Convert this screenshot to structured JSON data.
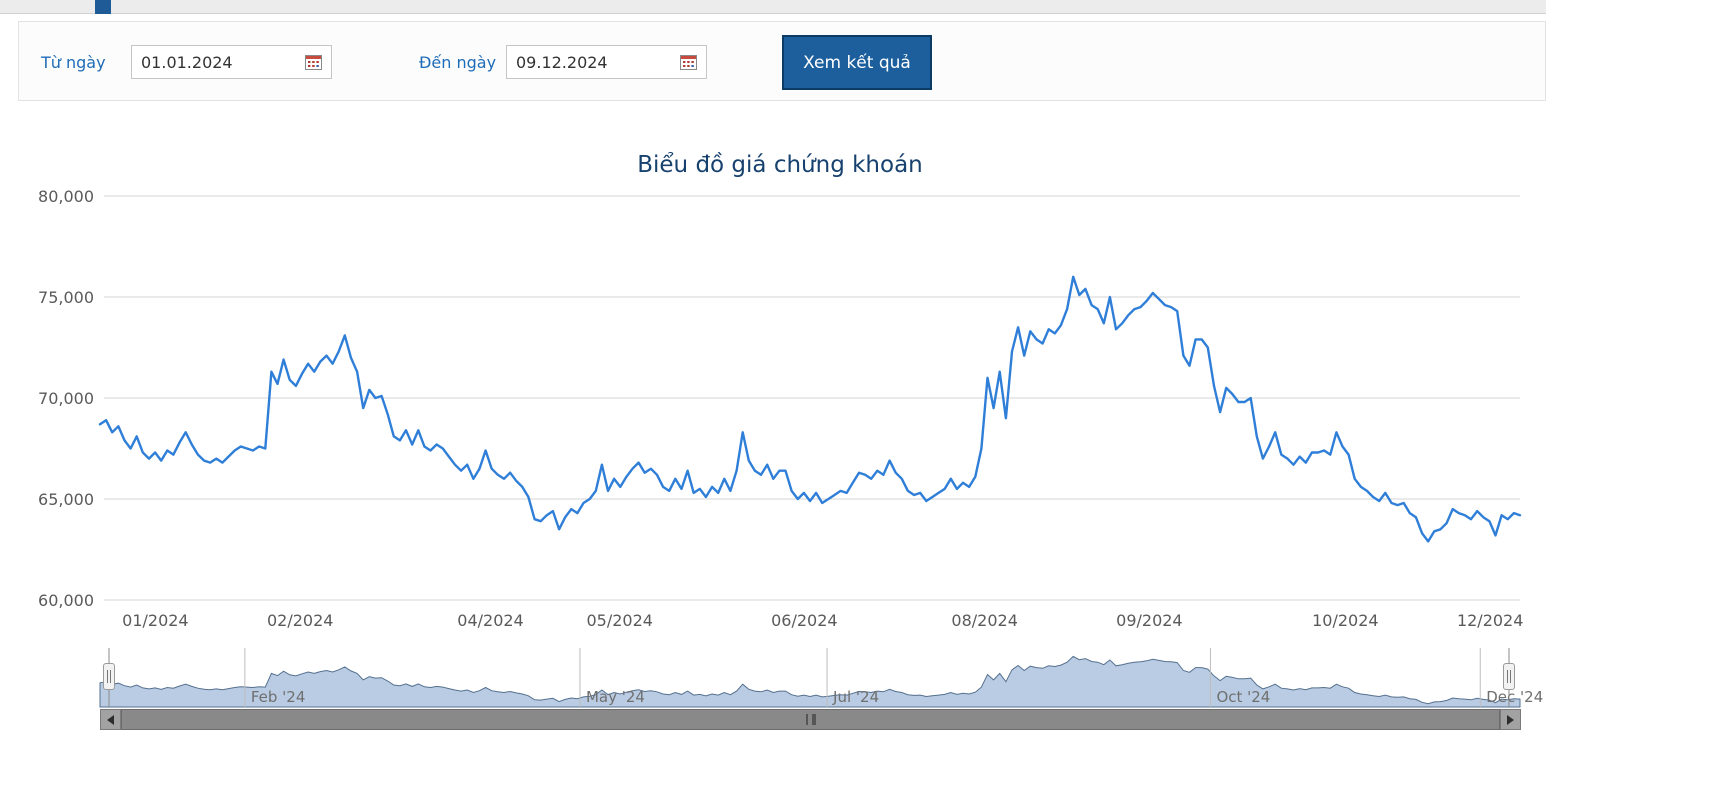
{
  "filter": {
    "from_label": "Từ ngày",
    "from_value": "01.01.2024",
    "to_label": "Đến ngày",
    "to_value": "09.12.2024",
    "submit_label": "Xem kết quả"
  },
  "chart_data": {
    "type": "line",
    "title": "Biểu đồ giá chứng khoán",
    "xlabel": "",
    "ylabel": "",
    "ylim": [
      60000,
      80000
    ],
    "yticks": [
      60000,
      65000,
      70000,
      75000,
      80000
    ],
    "xticks": [
      {
        "label": "01/2024",
        "pos": 0.039
      },
      {
        "label": "02/2024",
        "pos": 0.141
      },
      {
        "label": "04/2024",
        "pos": 0.275
      },
      {
        "label": "05/2024",
        "pos": 0.366
      },
      {
        "label": "06/2024",
        "pos": 0.496
      },
      {
        "label": "08/2024",
        "pos": 0.623
      },
      {
        "label": "09/2024",
        "pos": 0.739
      },
      {
        "label": "10/2024",
        "pos": 0.877
      },
      {
        "label": "12/2024",
        "pos": 0.979
      }
    ],
    "navigator_ticks": [
      {
        "label": "Feb '24",
        "pos": 0.102
      },
      {
        "label": "May '24",
        "pos": 0.338
      },
      {
        "label": "Jul '24",
        "pos": 0.512
      },
      {
        "label": "Oct '24",
        "pos": 0.782
      },
      {
        "label": "Dec '24",
        "pos": 0.972
      }
    ],
    "grid": true,
    "legend": "none",
    "values": [
      68700,
      68900,
      68300,
      68600,
      67900,
      67500,
      68100,
      67300,
      67000,
      67300,
      66900,
      67400,
      67200,
      67800,
      68300,
      67700,
      67200,
      66900,
      66800,
      67000,
      66800,
      67100,
      67400,
      67600,
      67500,
      67400,
      67600,
      67500,
      71300,
      70700,
      71900,
      70900,
      70600,
      71200,
      71700,
      71300,
      71800,
      72100,
      71700,
      72300,
      73100,
      72000,
      71300,
      69500,
      70400,
      70000,
      70100,
      69200,
      68100,
      67900,
      68400,
      67700,
      68400,
      67600,
      67400,
      67700,
      67500,
      67100,
      66700,
      66400,
      66700,
      66000,
      66500,
      67400,
      66500,
      66200,
      66000,
      66300,
      65900,
      65600,
      65100,
      64000,
      63900,
      64200,
      64400,
      63500,
      64100,
      64500,
      64300,
      64800,
      65000,
      65400,
      66700,
      65400,
      66000,
      65600,
      66100,
      66500,
      66800,
      66300,
      66500,
      66200,
      65600,
      65400,
      66000,
      65500,
      66400,
      65300,
      65500,
      65100,
      65600,
      65300,
      66000,
      65400,
      66400,
      68300,
      66900,
      66400,
      66200,
      66700,
      66000,
      66400,
      66400,
      65400,
      65000,
      65300,
      64900,
      65300,
      64800,
      65000,
      65200,
      65400,
      65300,
      65800,
      66300,
      66200,
      66000,
      66400,
      66200,
      66900,
      66300,
      66000,
      65400,
      65200,
      65300,
      64900,
      65100,
      65300,
      65500,
      66000,
      65500,
      65800,
      65600,
      66100,
      67500,
      71000,
      69500,
      71300,
      69000,
      72300,
      73500,
      72100,
      73300,
      72900,
      72700,
      73400,
      73200,
      73600,
      74400,
      76000,
      75100,
      75400,
      74600,
      74400,
      73700,
      75000,
      73400,
      73700,
      74100,
      74400,
      74500,
      74800,
      75200,
      74900,
      74600,
      74500,
      74300,
      72100,
      71600,
      72900,
      72900,
      72500,
      70600,
      69300,
      70500,
      70200,
      69800,
      69800,
      70000,
      68100,
      67000,
      67600,
      68300,
      67200,
      67000,
      66700,
      67100,
      66800,
      67300,
      67300,
      67400,
      67200,
      68300,
      67600,
      67200,
      66000,
      65600,
      65400,
      65100,
      64900,
      65300,
      64800,
      64700,
      64800,
      64300,
      64100,
      63300,
      62900,
      63400,
      63500,
      63800,
      64500,
      64300,
      64200,
      64000,
      64400,
      64100,
      63900,
      63200,
      64200,
      64000,
      64300,
      64200
    ]
  },
  "colors": {
    "line": "#2f7ed8",
    "title": "#17416e",
    "label_blue": "#1e6cb8",
    "button_bg": "#1d5f9d",
    "gridline": "#d4d4d4",
    "axis_label": "#5a5a5a",
    "navigator_fill": "#aec3de",
    "navigator_line": "#54708f"
  },
  "icons": {
    "calendar": "calendar-grid",
    "scrollbar_left": "triangle-left",
    "scrollbar_right": "triangle-right",
    "scrollbar_grip": "vertical-bars",
    "navigator_handle": "grip-handle"
  }
}
